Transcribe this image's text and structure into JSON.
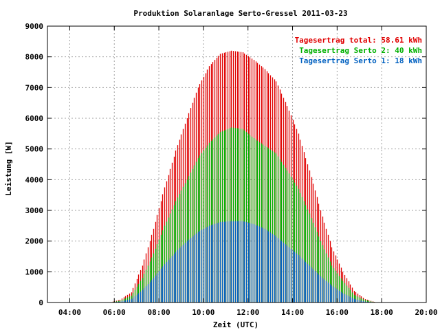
{
  "chart_data": {
    "type": "bar",
    "title": "Produktion Solaranlage Serto-Gressel 2011-03-23",
    "xlabel": "Zeit (UTC)",
    "ylabel": "Leistung [W]",
    "xlim": [
      "03:00",
      "20:00"
    ],
    "ylim": [
      0,
      9000
    ],
    "x_ticks": [
      "04:00",
      "06:00",
      "08:00",
      "10:00",
      "12:00",
      "14:00",
      "16:00",
      "18:00",
      "20:00"
    ],
    "y_ticks": [
      "0",
      "1000",
      "2000",
      "3000",
      "4000",
      "5000",
      "6000",
      "7000",
      "8000",
      "9000"
    ],
    "grid": true,
    "legend_position": "top-right",
    "sample_interval_minutes": 5,
    "x_start": "05:45",
    "colors": {
      "total": "#e00000",
      "serto2": "#00b000",
      "serto1": "#0060c0"
    },
    "x": [
      "05:45",
      "06:15",
      "06:45",
      "07:15",
      "07:45",
      "08:15",
      "08:45",
      "09:15",
      "09:45",
      "10:15",
      "10:45",
      "11:15",
      "11:45",
      "12:15",
      "12:45",
      "13:15",
      "13:45",
      "14:15",
      "14:45",
      "15:15",
      "15:45",
      "16:15",
      "16:45",
      "17:15",
      "17:45"
    ],
    "series": [
      {
        "name": "Serto 1",
        "values": [
          0,
          30,
          110,
          400,
          800,
          1250,
          1650,
          2000,
          2300,
          2500,
          2620,
          2650,
          2650,
          2550,
          2400,
          2150,
          1850,
          1550,
          1200,
          850,
          550,
          300,
          120,
          30,
          0
        ]
      },
      {
        "name": "Serto 2",
        "values": [
          0,
          60,
          220,
          800,
          1600,
          2500,
          3300,
          4000,
          4700,
          5200,
          5550,
          5700,
          5650,
          5350,
          5100,
          4850,
          4300,
          3700,
          2900,
          2000,
          1200,
          700,
          250,
          80,
          0
        ]
      },
      {
        "name": "total",
        "values": [
          0,
          90,
          330,
          1200,
          2400,
          3750,
          4950,
          6000,
          7000,
          7700,
          8100,
          8200,
          8150,
          7900,
          7600,
          7200,
          6400,
          5500,
          4300,
          3000,
          1800,
          1000,
          380,
          110,
          0
        ]
      }
    ],
    "legend": [
      {
        "key": "total",
        "label": "Tagesertrag total: 58.61 kWh",
        "color": "#e00000"
      },
      {
        "key": "serto2",
        "label": "Tagesertrag Serto 2: 40 kWh",
        "color": "#00b000"
      },
      {
        "key": "serto1",
        "label": "Tagesertrag Serto 1: 18 kWh",
        "color": "#0060c0"
      }
    ]
  }
}
